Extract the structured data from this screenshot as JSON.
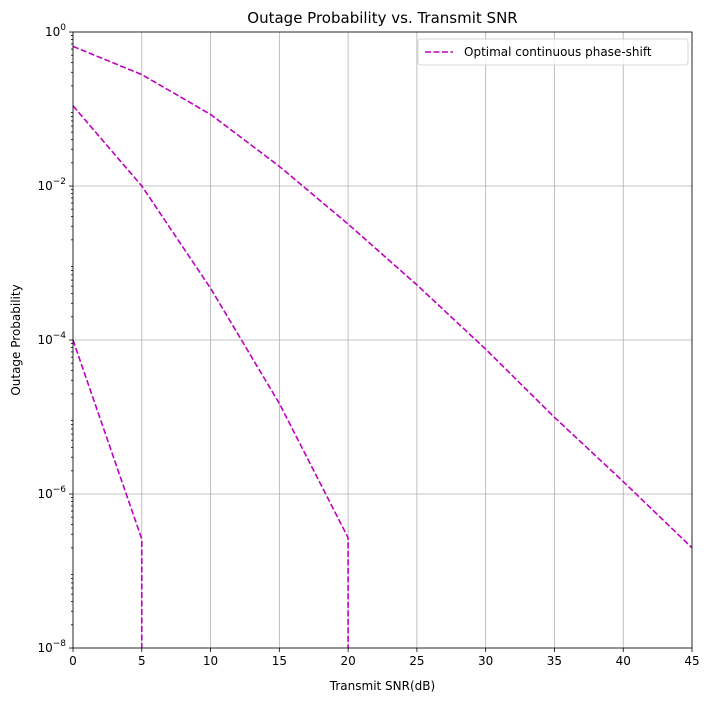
{
  "chart_data": {
    "type": "line",
    "title": "Outage Probability vs. Transmit SNR",
    "xlabel": "Transmit SNR(dB)",
    "ylabel": "Outage Probability",
    "xlim": [
      0,
      45
    ],
    "ylim": [
      1e-08,
      1
    ],
    "yscale": "log",
    "grid": true,
    "legend_position": "top-right",
    "x_ticks": [
      0,
      5,
      10,
      15,
      20,
      25,
      30,
      35,
      40,
      45
    ],
    "y_ticks": [
      {
        "value": 1,
        "base": "10",
        "exp": "0"
      },
      {
        "value": 0.01,
        "base": "10",
        "exp": "−2"
      },
      {
        "value": 0.0001,
        "base": "10",
        "exp": "−4"
      },
      {
        "value": 1e-06,
        "base": "10",
        "exp": "−6"
      },
      {
        "value": 1e-08,
        "base": "10",
        "exp": "−8"
      }
    ],
    "line_color": "#bf00bf",
    "line_style": "dashed",
    "series": [
      {
        "name": "Optimal continuous phase-shift",
        "x": [
          0,
          5,
          10,
          15,
          20,
          25,
          30,
          35,
          40,
          45
        ],
        "y": [
          0.65,
          0.28,
          0.085,
          0.018,
          0.0032,
          0.00052,
          7.6e-05,
          9.9e-06,
          1.45e-06,
          2e-07
        ]
      },
      {
        "name": "",
        "x": [
          0,
          5,
          10,
          15,
          20,
          20
        ],
        "y": [
          0.11,
          0.01,
          0.00047,
          1.5e-05,
          2.7e-07,
          1e-08
        ]
      },
      {
        "name": "",
        "x": [
          0,
          5,
          5
        ],
        "y": [
          0.0001,
          2.6e-07,
          1e-08
        ]
      }
    ]
  }
}
